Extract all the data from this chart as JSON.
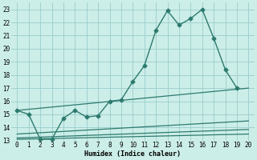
{
  "title": "",
  "xlabel": "Humidex (Indice chaleur)",
  "xlim": [
    -0.5,
    20.5
  ],
  "ylim": [
    13,
    23.5
  ],
  "yticks": [
    13,
    14,
    15,
    16,
    17,
    18,
    19,
    20,
    21,
    22,
    23
  ],
  "xticks": [
    0,
    1,
    2,
    3,
    4,
    5,
    6,
    7,
    8,
    9,
    10,
    11,
    12,
    13,
    14,
    15,
    16,
    17,
    18,
    19,
    20
  ],
  "bg_color": "#cceee8",
  "grid_color": "#99cccc",
  "line_color": "#2d7a6e",
  "main_series": {
    "x": [
      0,
      1,
      2,
      3,
      4,
      5,
      6,
      7,
      8,
      9,
      10,
      11,
      12,
      13,
      14,
      15,
      16,
      17,
      18,
      19
    ],
    "y": [
      15.3,
      15.0,
      13.1,
      13.1,
      14.7,
      15.3,
      14.8,
      14.9,
      16.0,
      16.1,
      17.5,
      18.7,
      21.4,
      22.9,
      21.8,
      22.3,
      23.0,
      20.8,
      18.4,
      17.0
    ],
    "marker": "D",
    "markersize": 2.5,
    "linewidth": 1.0
  },
  "ref_lines": [
    {
      "x": [
        0,
        20
      ],
      "y": [
        15.3,
        17.0
      ],
      "lw": 0.9
    },
    {
      "x": [
        0,
        20
      ],
      "y": [
        13.5,
        14.5
      ],
      "lw": 0.9
    },
    {
      "x": [
        0,
        20
      ],
      "y": [
        13.2,
        13.85
      ],
      "lw": 0.9
    },
    {
      "x": [
        0,
        20
      ],
      "y": [
        13.1,
        13.5
      ],
      "lw": 0.9
    }
  ]
}
